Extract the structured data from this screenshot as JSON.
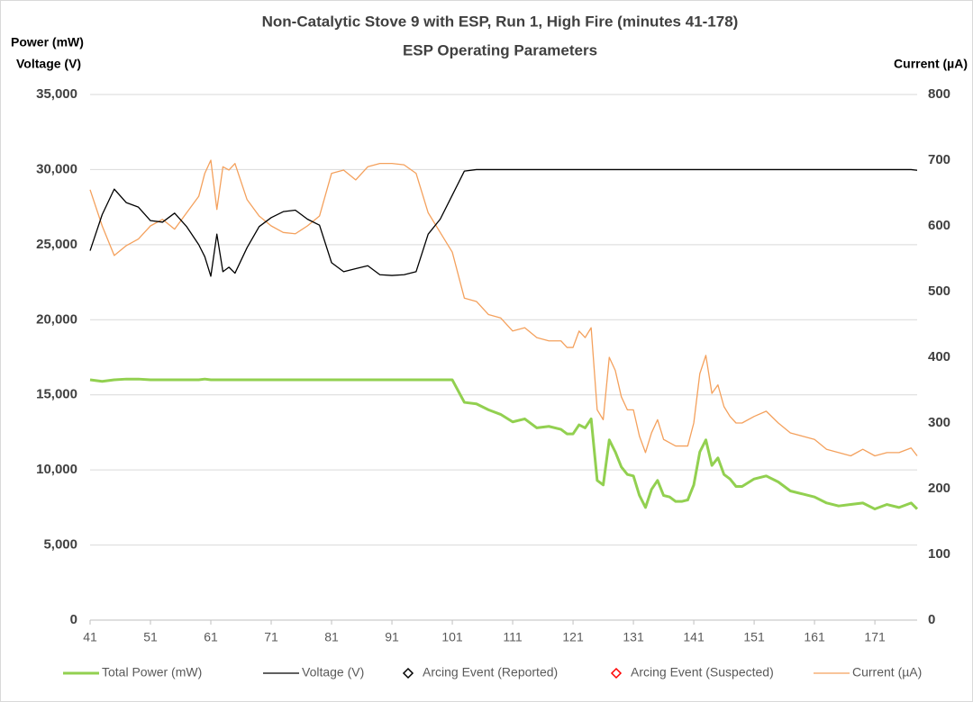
{
  "chart_data": {
    "type": "line",
    "title": "Non-Catalytic Stove 9 with ESP, Run 1, High Fire (minutes 41-178)",
    "subtitle": "ESP Operating Parameters",
    "ylabel": [
      "Power (mW)",
      "Voltage (V)"
    ],
    "y2label": "Current (µA)",
    "x": [
      41,
      43,
      45,
      47,
      49,
      51,
      53,
      55,
      57,
      59,
      60,
      61,
      62,
      63,
      64,
      65,
      67,
      69,
      71,
      73,
      75,
      77,
      79,
      81,
      83,
      85,
      87,
      89,
      91,
      93,
      95,
      97,
      99,
      101,
      103,
      105,
      107,
      109,
      111,
      113,
      115,
      117,
      119,
      120,
      121,
      122,
      123,
      124,
      125,
      126,
      127,
      128,
      129,
      130,
      131,
      132,
      133,
      134,
      135,
      136,
      137,
      138,
      139,
      140,
      141,
      142,
      143,
      144,
      145,
      146,
      147,
      148,
      149,
      151,
      153,
      155,
      157,
      159,
      161,
      163,
      165,
      167,
      169,
      171,
      173,
      175,
      177,
      178
    ],
    "xlim": [
      41,
      178
    ],
    "xticks": [
      41,
      51,
      61,
      71,
      81,
      91,
      101,
      111,
      121,
      131,
      141,
      151,
      161,
      171
    ],
    "ylim": [
      0,
      35000
    ],
    "yticks": [
      0,
      {
        "value": 5000,
        "label": "5,000"
      },
      {
        "value": 10000,
        "label": "10,000"
      },
      {
        "value": 15000,
        "label": "15,000"
      },
      {
        "value": 20000,
        "label": "20,000"
      },
      {
        "value": 25000,
        "label": "25,000"
      },
      {
        "value": 30000,
        "label": "30,000"
      },
      {
        "value": 35000,
        "label": "35,000"
      }
    ],
    "y2lim": [
      0,
      800
    ],
    "y2ticks": [
      0,
      100,
      200,
      300,
      400,
      500,
      600,
      700,
      800
    ],
    "grid": true,
    "legend": "bottom",
    "series": [
      {
        "name": "Total Power (mW)",
        "color": "#92d050",
        "width": 3,
        "values": [
          16000,
          15900,
          16000,
          16050,
          16050,
          16000,
          16000,
          16000,
          16000,
          16000,
          16050,
          16000,
          16000,
          16000,
          16000,
          16000,
          16000,
          16000,
          16000,
          16000,
          16000,
          16000,
          16000,
          16000,
          16000,
          16000,
          16000,
          16000,
          16000,
          16000,
          16000,
          16000,
          16000,
          16000,
          14500,
          14400,
          14000,
          13700,
          13200,
          13400,
          12800,
          12900,
          12700,
          12400,
          12400,
          13000,
          12800,
          13400,
          9300,
          9000,
          12000,
          11200,
          10200,
          9700,
          9600,
          8300,
          7500,
          8700,
          9300,
          8300,
          8200,
          7900,
          7900,
          8000,
          9000,
          11200,
          12000,
          10300,
          10800,
          9700,
          9400,
          8900,
          8900,
          9400,
          9600,
          9200,
          8600,
          8400,
          8200,
          7800,
          7600,
          7700,
          7800,
          7400,
          7700,
          7500,
          7800,
          7400
        ]
      },
      {
        "name": "Voltage (V)",
        "color": "#000000",
        "width": 1.3,
        "values": [
          24600,
          27000,
          28700,
          27800,
          27500,
          26600,
          26500,
          27100,
          26200,
          25000,
          24200,
          22900,
          25700,
          23200,
          23500,
          23100,
          24800,
          26200,
          26800,
          27200,
          27300,
          26700,
          26300,
          23800,
          23200,
          23400,
          23600,
          23000,
          22950,
          23000,
          23200,
          25700,
          26700,
          28300,
          29900,
          30000,
          30000,
          30000,
          30000,
          30000,
          30000,
          30000,
          30000,
          30000,
          30000,
          30000,
          30000,
          30000,
          30000,
          30000,
          30000,
          30000,
          30000,
          30000,
          30000,
          30000,
          30000,
          30000,
          30000,
          30000,
          30000,
          30000,
          30000,
          30000,
          30000,
          30000,
          30000,
          30000,
          30000,
          30000,
          30000,
          30000,
          30000,
          30000,
          30000,
          30000,
          30000,
          30000,
          30000,
          30000,
          30000,
          30000,
          30000,
          30000,
          30000,
          30000,
          30000,
          29950
        ]
      },
      {
        "name": "Arcing Event (Reported)",
        "color": "#000000",
        "marker": "diamond",
        "values": [
          null,
          null,
          null,
          null,
          null,
          null,
          null,
          null,
          null,
          null,
          null,
          null,
          null,
          null,
          null,
          null,
          null,
          null,
          null,
          null,
          null,
          null,
          null,
          null,
          null,
          null,
          null,
          null,
          null,
          null,
          null,
          null,
          null,
          null,
          null,
          null,
          null,
          null,
          null,
          null,
          null,
          null,
          null,
          null,
          null,
          null,
          null,
          null,
          null,
          null,
          null,
          null,
          null,
          null,
          null,
          null,
          null,
          null,
          null,
          null,
          null,
          null,
          null,
          null,
          null,
          null,
          null,
          null,
          null,
          null,
          null,
          null,
          null,
          null,
          null,
          null,
          null,
          null,
          null,
          null,
          null,
          null,
          null,
          null,
          null,
          null,
          null,
          null
        ]
      },
      {
        "name": "Arcing Event (Suspected)",
        "color": "#ff0000",
        "marker": "diamond",
        "values": [
          null,
          null,
          null,
          null,
          null,
          null,
          null,
          null,
          null,
          null,
          null,
          null,
          null,
          null,
          null,
          null,
          null,
          null,
          null,
          null,
          null,
          null,
          null,
          null,
          null,
          null,
          null,
          null,
          null,
          null,
          null,
          null,
          null,
          null,
          null,
          null,
          null,
          null,
          null,
          null,
          null,
          null,
          null,
          null,
          null,
          null,
          null,
          null,
          null,
          null,
          null,
          null,
          null,
          null,
          null,
          null,
          null,
          null,
          null,
          null,
          null,
          null,
          null,
          null,
          null,
          null,
          null,
          null,
          null,
          null,
          null,
          null,
          null,
          null,
          null,
          null,
          null,
          null,
          null,
          null,
          null,
          null,
          null,
          null,
          null,
          null,
          null,
          null
        ]
      },
      {
        "name": "Current (µA)",
        "color": "#f4a15d",
        "width": 1.3,
        "axis": "y2",
        "values": [
          655,
          600,
          555,
          570,
          580,
          600,
          610,
          595,
          620,
          645,
          680,
          700,
          625,
          690,
          685,
          695,
          640,
          615,
          600,
          590,
          588,
          600,
          615,
          680,
          685,
          670,
          690,
          695,
          695,
          693,
          680,
          620,
          590,
          560,
          490,
          485,
          465,
          460,
          440,
          445,
          430,
          425,
          425,
          415,
          415,
          440,
          430,
          445,
          320,
          305,
          400,
          380,
          340,
          320,
          320,
          280,
          255,
          285,
          305,
          275,
          270,
          265,
          265,
          265,
          300,
          375,
          403,
          345,
          358,
          325,
          310,
          300,
          300,
          310,
          318,
          300,
          285,
          280,
          275,
          260,
          255,
          250,
          260,
          250,
          255,
          255,
          262,
          250
        ]
      }
    ]
  }
}
